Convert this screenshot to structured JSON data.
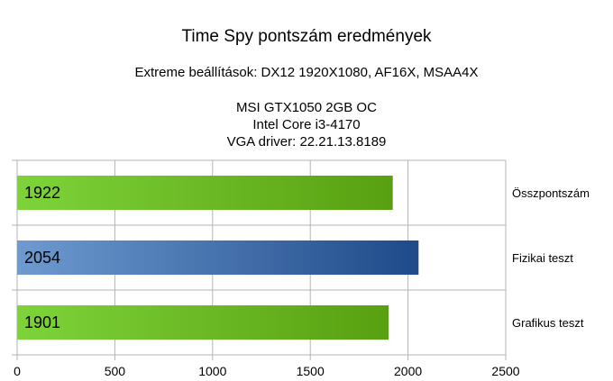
{
  "chart_data": {
    "type": "bar",
    "orientation": "horizontal",
    "title": "Time Spy pontszám eredmények",
    "subtitle": "Extreme beállítások: DX12 1920X1080, AF16X, MSAA4X",
    "info_lines": [
      "MSI GTX1050 2GB OC",
      "Intel Core i3-4170",
      "VGA driver: 22.21.13.8189"
    ],
    "categories": [
      "Összpontszám",
      "Fizikai teszt",
      "Grafikus teszt"
    ],
    "values": [
      1922,
      2054,
      1901
    ],
    "data_labels": [
      "1922",
      "2054",
      "1901"
    ],
    "bar_colors": [
      [
        "#7ed33a",
        "#58a010"
      ],
      [
        "#6e9ad0",
        "#1f4a8a"
      ],
      [
        "#7ed33a",
        "#58a010"
      ]
    ],
    "xlim": [
      0,
      2500
    ],
    "x_ticks": [
      0,
      500,
      1000,
      1500,
      2000,
      2500
    ],
    "x_tick_labels": [
      "0",
      "500",
      "1000",
      "1500",
      "2000",
      "2500"
    ],
    "grid": true,
    "legend": "none"
  }
}
